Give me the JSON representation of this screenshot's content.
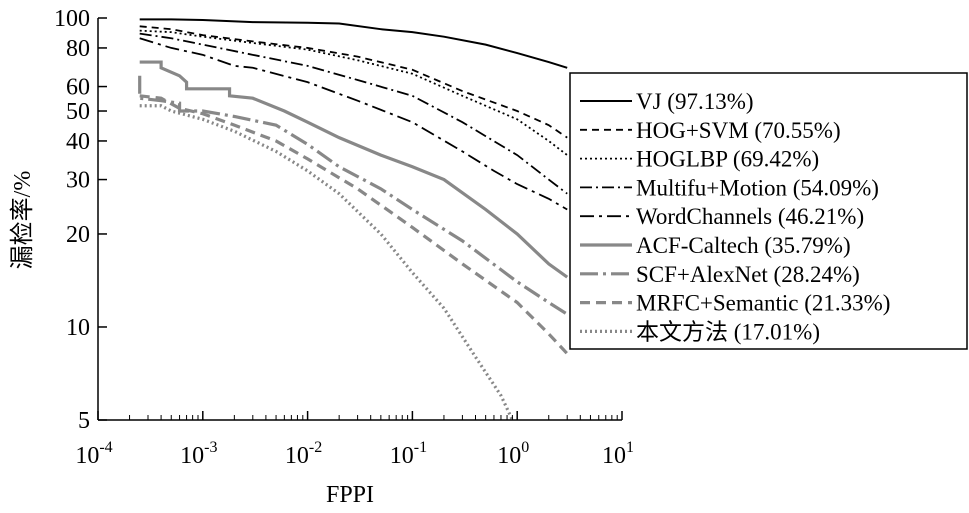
{
  "chart_data": {
    "type": "line",
    "xlabel": "FPPI",
    "ylabel": "漏检率/%",
    "x_scale": "log",
    "y_scale": "log",
    "xlim": [
      0.0001,
      10
    ],
    "ylim": [
      5,
      100
    ],
    "x_ticks": [
      {
        "value": 0.0001,
        "base": "10",
        "exp": "-4"
      },
      {
        "value": 0.001,
        "base": "10",
        "exp": "-3"
      },
      {
        "value": 0.01,
        "base": "10",
        "exp": "-2"
      },
      {
        "value": 0.1,
        "base": "10",
        "exp": "-1"
      },
      {
        "value": 1,
        "base": "10",
        "exp": "0"
      },
      {
        "value": 10,
        "base": "10",
        "exp": "1"
      }
    ],
    "y_ticks": [
      {
        "value": 5,
        "label": "5"
      },
      {
        "value": 10,
        "label": "10"
      },
      {
        "value": 20,
        "label": "20"
      },
      {
        "value": 30,
        "label": "30"
      },
      {
        "value": 40,
        "label": "40"
      },
      {
        "value": 50,
        "label": "50"
      },
      {
        "value": 60,
        "label": "60"
      },
      {
        "value": 80,
        "label": "80"
      },
      {
        "value": 100,
        "label": "100"
      }
    ],
    "grid": false,
    "legend_position": "right",
    "series": [
      {
        "name": "VJ (97.13%)",
        "color": "#000000",
        "dash": "",
        "width": 2,
        "points": [
          [
            0.00025,
            99
          ],
          [
            0.0005,
            99
          ],
          [
            0.001,
            98.5
          ],
          [
            0.003,
            97
          ],
          [
            0.01,
            96.5
          ],
          [
            0.02,
            96
          ],
          [
            0.05,
            92
          ],
          [
            0.1,
            90
          ],
          [
            0.2,
            87
          ],
          [
            0.5,
            82
          ],
          [
            1,
            77
          ],
          [
            2,
            72
          ],
          [
            3,
            69
          ]
        ]
      },
      {
        "name": "HOG+SVM (70.55%)",
        "color": "#000000",
        "dash": "7,5",
        "width": 1.8,
        "points": [
          [
            0.00025,
            94
          ],
          [
            0.0005,
            92
          ],
          [
            0.001,
            88
          ],
          [
            0.003,
            84
          ],
          [
            0.01,
            80
          ],
          [
            0.03,
            75
          ],
          [
            0.1,
            68
          ],
          [
            0.3,
            58
          ],
          [
            1,
            50
          ],
          [
            2,
            45
          ],
          [
            3,
            41
          ]
        ]
      },
      {
        "name": "HOGLBP (69.42%)",
        "color": "#000000",
        "dash": "2,3",
        "width": 1.8,
        "points": [
          [
            0.00025,
            91
          ],
          [
            0.0005,
            90
          ],
          [
            0.001,
            87
          ],
          [
            0.003,
            83
          ],
          [
            0.01,
            79
          ],
          [
            0.03,
            73
          ],
          [
            0.1,
            66
          ],
          [
            0.3,
            56
          ],
          [
            1,
            47
          ],
          [
            2,
            40
          ],
          [
            3,
            36
          ]
        ]
      },
      {
        "name": "Multifu+Motion (54.09%)",
        "color": "#000000",
        "dash": "12,4,2,4",
        "width": 1.8,
        "points": [
          [
            0.00025,
            89
          ],
          [
            0.0005,
            86
          ],
          [
            0.001,
            82
          ],
          [
            0.003,
            76
          ],
          [
            0.01,
            70
          ],
          [
            0.03,
            63
          ],
          [
            0.1,
            56
          ],
          [
            0.3,
            46
          ],
          [
            1,
            36
          ],
          [
            2,
            30
          ],
          [
            3,
            27
          ]
        ]
      },
      {
        "name": "WordChannels (46.21%)",
        "color": "#000000",
        "dash": "14,5,3,5",
        "width": 1.8,
        "points": [
          [
            0.00025,
            86
          ],
          [
            0.0005,
            80
          ],
          [
            0.001,
            76
          ],
          [
            0.002,
            70
          ],
          [
            0.003,
            69
          ],
          [
            0.01,
            62
          ],
          [
            0.03,
            54
          ],
          [
            0.1,
            46
          ],
          [
            0.3,
            37
          ],
          [
            0.6,
            32
          ],
          [
            1,
            29
          ],
          [
            2,
            26
          ],
          [
            3,
            24
          ]
        ]
      },
      {
        "name": "ACF-Caltech (35.79%)",
        "color": "#888888",
        "dash": "",
        "width": 3.2,
        "points": [
          [
            0.00025,
            72
          ],
          [
            0.0004,
            72
          ],
          [
            0.0004,
            69
          ],
          [
            0.0006,
            65
          ],
          [
            0.0007,
            62
          ],
          [
            0.0007,
            59
          ],
          [
            0.001,
            59
          ],
          [
            0.0018,
            59
          ],
          [
            0.0018,
            56
          ],
          [
            0.003,
            55
          ],
          [
            0.006,
            50
          ],
          [
            0.01,
            46
          ],
          [
            0.02,
            41
          ],
          [
            0.05,
            36
          ],
          [
            0.1,
            33
          ],
          [
            0.2,
            30
          ],
          [
            0.5,
            24
          ],
          [
            1,
            20
          ],
          [
            2,
            16
          ],
          [
            3,
            14.5
          ]
        ]
      },
      {
        "name": "SCF+AlexNet (28.24%)",
        "color": "#888888",
        "dash": "18,5,3,5",
        "width": 3.2,
        "points": [
          [
            0.00025,
            65
          ],
          [
            0.00025,
            55
          ],
          [
            0.0004,
            54
          ],
          [
            0.0006,
            53
          ],
          [
            0.0006,
            50
          ],
          [
            0.001,
            50
          ],
          [
            0.002,
            48
          ],
          [
            0.005,
            45
          ],
          [
            0.01,
            39
          ],
          [
            0.02,
            33
          ],
          [
            0.05,
            28
          ],
          [
            0.1,
            24
          ],
          [
            0.3,
            19
          ],
          [
            1,
            14
          ],
          [
            2,
            12
          ],
          [
            3,
            11
          ]
        ]
      },
      {
        "name": "MRFC+Semantic (21.33%)",
        "color": "#888888",
        "dash": "10,6",
        "width": 3.2,
        "points": [
          [
            0.00025,
            56
          ],
          [
            0.0004,
            55
          ],
          [
            0.0006,
            51
          ],
          [
            0.001,
            49
          ],
          [
            0.002,
            45
          ],
          [
            0.005,
            40
          ],
          [
            0.01,
            35
          ],
          [
            0.03,
            28
          ],
          [
            0.1,
            21
          ],
          [
            0.3,
            16
          ],
          [
            1,
            12
          ],
          [
            2,
            9.5
          ],
          [
            3,
            8.2
          ]
        ]
      },
      {
        "name": "本文方法 (17.01%)",
        "color": "#888888",
        "dash": "2,3",
        "width": 3.2,
        "points": [
          [
            0.00025,
            52
          ],
          [
            0.0004,
            52
          ],
          [
            0.0005,
            50
          ],
          [
            0.001,
            47
          ],
          [
            0.002,
            43
          ],
          [
            0.005,
            37
          ],
          [
            0.01,
            32
          ],
          [
            0.02,
            27
          ],
          [
            0.05,
            20
          ],
          [
            0.1,
            15
          ],
          [
            0.2,
            11.5
          ],
          [
            0.4,
            8
          ],
          [
            0.7,
            6
          ],
          [
            0.9,
            5
          ]
        ]
      }
    ]
  }
}
